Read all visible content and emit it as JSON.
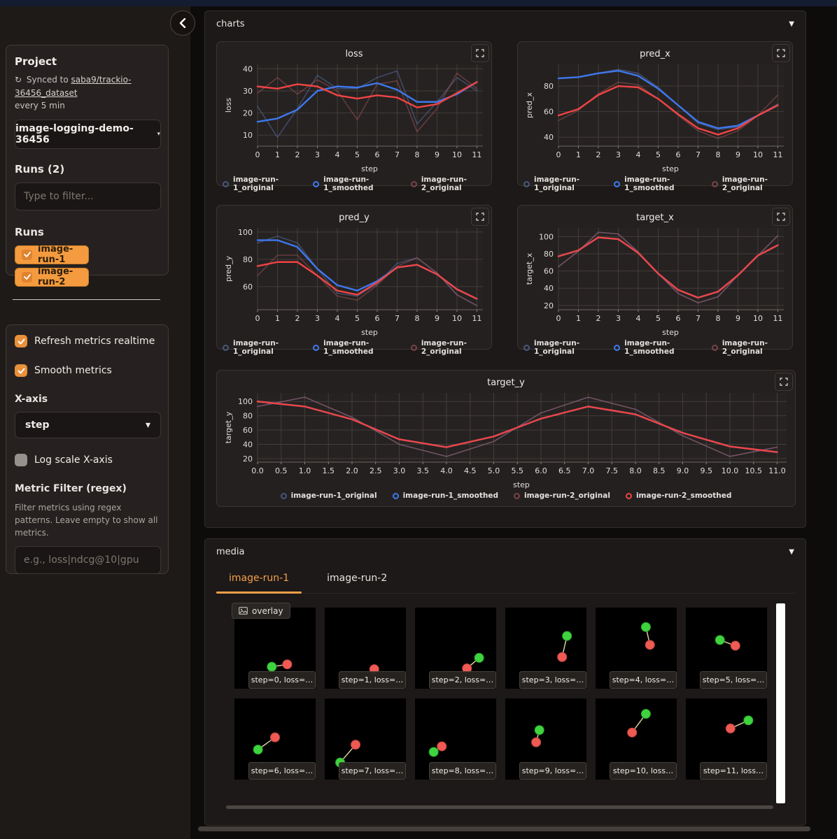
{
  "colors": {
    "accent_orange": "#f5a04a",
    "pill_orange": "#f49b3f",
    "pill_cb_orange": "#e0832f",
    "run1_blue": "#3e78ef",
    "run1_blue_faded": "#5d7db8",
    "run2_red": "#ef4444",
    "run2_red_faded": "#b05a60",
    "green_dot": "#3fd43f",
    "red_dot": "#ef5a52",
    "grid_line": "#423d3a",
    "plot_bg": "#262221"
  },
  "sidebar": {
    "project": {
      "label": "Project",
      "sync_prefix": "Synced to",
      "sync_link": "saba9/trackio-36456_dataset",
      "sync_suffix": "every 5 min",
      "selected_project": "image-logging-demo-36456",
      "caret": "▾"
    },
    "runs_count_label": "Runs (2)",
    "filter_placeholder": "Type to filter...",
    "runs_label": "Runs",
    "run_pills": [
      {
        "label": "image-run-1",
        "checked": true
      },
      {
        "label": "image-run-2",
        "checked": true
      }
    ],
    "settings": {
      "refresh_label": "Refresh metrics realtime",
      "refresh_checked": true,
      "smooth_label": "Smooth metrics",
      "smooth_checked": true,
      "xaxis_label": "X-axis",
      "xaxis_value": "step",
      "xaxis_caret": "▾",
      "log_label": "Log scale X-axis",
      "log_checked": false,
      "metric_filter_label": "Metric Filter (regex)",
      "metric_filter_desc": "Filter metrics using regex patterns. Leave empty to show all metrics.",
      "metric_filter_placeholder": "e.g., loss|ndcg@10|gpu"
    }
  },
  "charts_section": {
    "title": "charts",
    "caret": "▼"
  },
  "media_section": {
    "title": "media",
    "caret": "▼",
    "tabs": [
      "image-run-1",
      "image-run-2"
    ],
    "active_tab": "image-run-1",
    "overlay_button": "overlay",
    "images": [
      {
        "caption": "step=0, loss=…",
        "points": [
          {
            "c": "green",
            "x": 0.46,
            "y": 0.73
          },
          {
            "c": "red",
            "x": 0.65,
            "y": 0.7
          }
        ],
        "line": true
      },
      {
        "caption": "step=1, loss=…",
        "points": [
          {
            "c": "red",
            "x": 0.61,
            "y": 0.76
          }
        ],
        "line": false
      },
      {
        "caption": "step=2, loss=…",
        "points": [
          {
            "c": "green",
            "x": 0.79,
            "y": 0.62
          },
          {
            "c": "red",
            "x": 0.64,
            "y": 0.75
          }
        ],
        "line": true
      },
      {
        "caption": "step=3, loss=…",
        "points": [
          {
            "c": "green",
            "x": 0.76,
            "y": 0.35
          },
          {
            "c": "red",
            "x": 0.7,
            "y": 0.61
          }
        ],
        "line": true
      },
      {
        "caption": "step=4, loss=…",
        "points": [
          {
            "c": "green",
            "x": 0.62,
            "y": 0.24
          },
          {
            "c": "red",
            "x": 0.67,
            "y": 0.46
          }
        ],
        "line": true
      },
      {
        "caption": "step=5, loss=…",
        "points": [
          {
            "c": "green",
            "x": 0.42,
            "y": 0.4
          },
          {
            "c": "red",
            "x": 0.61,
            "y": 0.47
          }
        ],
        "line": true
      },
      {
        "caption": "step=6, loss=…",
        "points": [
          {
            "c": "green",
            "x": 0.29,
            "y": 0.63
          },
          {
            "c": "red",
            "x": 0.5,
            "y": 0.48
          }
        ],
        "line": true
      },
      {
        "caption": "step=7, loss=…",
        "points": [
          {
            "c": "green",
            "x": 0.19,
            "y": 0.79
          },
          {
            "c": "red",
            "x": 0.38,
            "y": 0.57
          }
        ],
        "line": true
      },
      {
        "caption": "step=8, loss=…",
        "points": [
          {
            "c": "green",
            "x": 0.23,
            "y": 0.66
          },
          {
            "c": "red",
            "x": 0.33,
            "y": 0.59
          }
        ],
        "line": true
      },
      {
        "caption": "step=9, loss=…",
        "points": [
          {
            "c": "green",
            "x": 0.42,
            "y": 0.39
          },
          {
            "c": "red",
            "x": 0.38,
            "y": 0.54
          }
        ],
        "line": true
      },
      {
        "caption": "step=10, loss…",
        "points": [
          {
            "c": "green",
            "x": 0.62,
            "y": 0.19
          },
          {
            "c": "red",
            "x": 0.45,
            "y": 0.42
          }
        ],
        "line": true
      },
      {
        "caption": "step=11, loss…",
        "points": [
          {
            "c": "green",
            "x": 0.77,
            "y": 0.27
          },
          {
            "c": "red",
            "x": 0.55,
            "y": 0.37
          }
        ],
        "line": true
      }
    ]
  },
  "chart_data": [
    {
      "type": "line",
      "title": "loss",
      "xlabel": "step",
      "ylabel": "loss",
      "x": [
        0,
        1,
        2,
        3,
        4,
        5,
        6,
        7,
        8,
        9,
        10,
        11
      ],
      "xticks": [
        "0",
        "1",
        "2",
        "3",
        "4",
        "5",
        "6",
        "7",
        "8",
        "9",
        "10",
        "11"
      ],
      "ylim": [
        5,
        42
      ],
      "yticks": [
        10,
        20,
        30,
        40
      ],
      "xmax": 11.3,
      "grid": true,
      "legend_position": "bottom",
      "series": [
        {
          "name": "image-run-1_original",
          "color": "#5d7db8",
          "opacity": 0.45,
          "width": 1.6,
          "values": [
            23,
            9,
            22,
            37,
            31,
            31,
            36,
            39,
            15,
            25,
            36,
            30
          ]
        },
        {
          "name": "image-run-2_original",
          "color": "#b05a60",
          "opacity": 0.45,
          "width": 1.6,
          "values": [
            29,
            36,
            28.5,
            35,
            30,
            17,
            33,
            34.5,
            11.5,
            22,
            38,
            31
          ]
        },
        {
          "name": "image-run-1_smoothed",
          "color": "#3e78ef",
          "opacity": 1,
          "width": 2.4,
          "values": [
            16,
            17.5,
            21.5,
            30,
            32,
            31.5,
            33.5,
            30.5,
            25,
            25,
            28.5,
            34
          ]
        },
        {
          "name": "image-run-2_smoothed",
          "color": "#ef4444",
          "opacity": 1,
          "width": 2.4,
          "values": [
            32,
            31,
            33,
            32,
            28,
            26.5,
            28,
            27,
            22.5,
            24,
            29,
            34
          ]
        }
      ],
      "legend": [
        "image-run-1_original",
        "image-run-1_smoothed",
        "image-run-2_original"
      ]
    },
    {
      "type": "line",
      "title": "pred_x",
      "xlabel": "step",
      "ylabel": "pred_x",
      "x": [
        0,
        1,
        2,
        3,
        4,
        5,
        6,
        7,
        8,
        9,
        10,
        11
      ],
      "xticks": [
        "0",
        "1",
        "2",
        "3",
        "4",
        "5",
        "6",
        "7",
        "8",
        "9",
        "10",
        "11"
      ],
      "ylim": [
        33,
        97
      ],
      "yticks": [
        40,
        60,
        80
      ],
      "xmax": 11.3,
      "grid": true,
      "legend_position": "bottom",
      "series": [
        {
          "name": "image-run-1_original",
          "color": "#5d7db8",
          "opacity": 0.45,
          "width": 1.6,
          "values": [
            86,
            87,
            90,
            93,
            90,
            79,
            65,
            51,
            46,
            48,
            57,
            66
          ]
        },
        {
          "name": "image-run-2_original",
          "color": "#b05a60",
          "opacity": 0.45,
          "width": 1.6,
          "values": [
            53,
            61,
            74,
            83,
            81,
            70,
            57,
            45,
            39,
            45,
            57,
            73
          ]
        },
        {
          "name": "image-run-1_smoothed",
          "color": "#3e78ef",
          "opacity": 1,
          "width": 2.4,
          "values": [
            86,
            87,
            90,
            92,
            88,
            78,
            65,
            52,
            47,
            49,
            57,
            65
          ]
        },
        {
          "name": "image-run-2_smoothed",
          "color": "#ef4444",
          "opacity": 1,
          "width": 2.4,
          "values": [
            57,
            62,
            73,
            80,
            79,
            70,
            58,
            47,
            42,
            47,
            57,
            65
          ]
        }
      ],
      "legend": [
        "image-run-1_original",
        "image-run-1_smoothed",
        "image-run-2_original"
      ]
    },
    {
      "type": "line",
      "title": "pred_y",
      "xlabel": "step",
      "ylabel": "pred_y",
      "x": [
        0,
        1,
        2,
        3,
        4,
        5,
        6,
        7,
        8,
        9,
        10,
        11
      ],
      "xticks": [
        "0",
        "1",
        "2",
        "3",
        "4",
        "5",
        "6",
        "7",
        "8",
        "9",
        "10",
        "11"
      ],
      "ylim": [
        43,
        103
      ],
      "yticks": [
        60,
        80,
        100
      ],
      "xmax": 11.3,
      "grid": true,
      "legend_position": "bottom",
      "series": [
        {
          "name": "image-run-1_original",
          "color": "#5d7db8",
          "opacity": 0.45,
          "width": 1.6,
          "values": [
            92,
            97,
            92,
            73,
            55,
            53,
            62,
            77,
            81,
            70,
            54,
            46
          ]
        },
        {
          "name": "image-run-2_original",
          "color": "#b05a60",
          "opacity": 0.45,
          "width": 1.6,
          "values": [
            68,
            83,
            83,
            68,
            53,
            50,
            61,
            75,
            81,
            70,
            54,
            46
          ]
        },
        {
          "name": "image-run-1_smoothed",
          "color": "#3e78ef",
          "opacity": 1,
          "width": 2.4,
          "values": [
            94,
            94,
            89,
            73,
            61,
            57,
            64,
            74,
            76,
            69,
            58,
            51
          ]
        },
        {
          "name": "image-run-2_smoothed",
          "color": "#ef4444",
          "opacity": 1,
          "width": 2.4,
          "values": [
            75,
            78,
            78,
            68,
            57,
            54,
            63,
            74,
            76,
            69,
            58,
            51
          ]
        }
      ],
      "legend": [
        "image-run-1_original",
        "image-run-1_smoothed",
        "image-run-2_original"
      ]
    },
    {
      "type": "line",
      "title": "target_x",
      "xlabel": "step",
      "ylabel": "target_x",
      "x": [
        0,
        1,
        2,
        3,
        4,
        5,
        6,
        7,
        8,
        9,
        10,
        11
      ],
      "xticks": [
        "0",
        "1",
        "2",
        "3",
        "4",
        "5",
        "6",
        "7",
        "8",
        "9",
        "10",
        "11"
      ],
      "ylim": [
        15,
        110
      ],
      "yticks": [
        20,
        40,
        60,
        80,
        100
      ],
      "xmax": 11.3,
      "grid": true,
      "legend_position": "bottom",
      "series": [
        {
          "name": "image-run-1_original",
          "color": "#5d7db8",
          "opacity": 0.45,
          "width": 1.6,
          "values": [
            65,
            83,
            105,
            103,
            82,
            57,
            34,
            23,
            30,
            55,
            78,
            101
          ]
        },
        {
          "name": "image-run-2_original",
          "color": "#b05a60",
          "opacity": 0.45,
          "width": 1.6,
          "values": [
            65,
            83,
            105,
            103,
            82,
            57,
            34,
            23,
            30,
            55,
            78,
            101
          ]
        },
        {
          "name": "image-run-1_smoothed",
          "color": "#3e78ef",
          "opacity": 1,
          "width": 2.4,
          "values": [
            77,
            84,
            99,
            97,
            81,
            57,
            38,
            29,
            36,
            55,
            78,
            90
          ]
        },
        {
          "name": "image-run-2_smoothed",
          "color": "#ef4444",
          "opacity": 1,
          "width": 2.4,
          "values": [
            77,
            84,
            99,
            97,
            81,
            57,
            38,
            29,
            36,
            55,
            78,
            90
          ]
        }
      ],
      "legend": [
        "image-run-1_original",
        "image-run-1_smoothed",
        "image-run-2_original"
      ]
    },
    {
      "type": "line",
      "title": "target_y",
      "xlabel": "step",
      "ylabel": "target_y",
      "x": [
        0,
        1,
        2,
        3,
        4,
        5,
        6,
        7,
        8,
        9,
        10,
        11
      ],
      "xticks": [
        "0.0",
        "0.5",
        "1.0",
        "1.5",
        "2.0",
        "2.5",
        "3.0",
        "3.5",
        "4.0",
        "4.5",
        "5.0",
        "5.5",
        "6.0",
        "6.5",
        "7.0",
        "7.5",
        "8.0",
        "8.5",
        "9.0",
        "9.5",
        "10.0",
        "10.5",
        "11.0"
      ],
      "xtick_step": 0.5,
      "ylim": [
        15,
        112
      ],
      "yticks": [
        20,
        40,
        60,
        80,
        100
      ],
      "xmax": 11.2,
      "grid": true,
      "legend_position": "bottom",
      "series": [
        {
          "name": "image-run-1_original",
          "color": "#5d7db8",
          "opacity": 0.45,
          "width": 1.6,
          "values": [
            93,
            106,
            78,
            40,
            23,
            44,
            84,
            106,
            89,
            52,
            23,
            36
          ]
        },
        {
          "name": "image-run-2_original",
          "color": "#b05a60",
          "opacity": 0.45,
          "width": 1.6,
          "values": [
            93,
            106,
            78,
            40,
            23,
            44,
            84,
            106,
            89,
            52,
            23,
            36
          ]
        },
        {
          "name": "image-run-1_smoothed",
          "color": "#3e78ef",
          "opacity": 1,
          "width": 2.4,
          "values": [
            100,
            93,
            75,
            47,
            36,
            51,
            76,
            93,
            82,
            56,
            37,
            29
          ]
        },
        {
          "name": "image-run-2_smoothed",
          "color": "#ef4444",
          "opacity": 1,
          "width": 2.4,
          "values": [
            100,
            93,
            75,
            47,
            36,
            51,
            76,
            93,
            82,
            56,
            37,
            29
          ]
        }
      ],
      "legend": [
        "image-run-1_original",
        "image-run-1_smoothed",
        "image-run-2_original",
        "image-run-2_smoothed"
      ]
    }
  ]
}
